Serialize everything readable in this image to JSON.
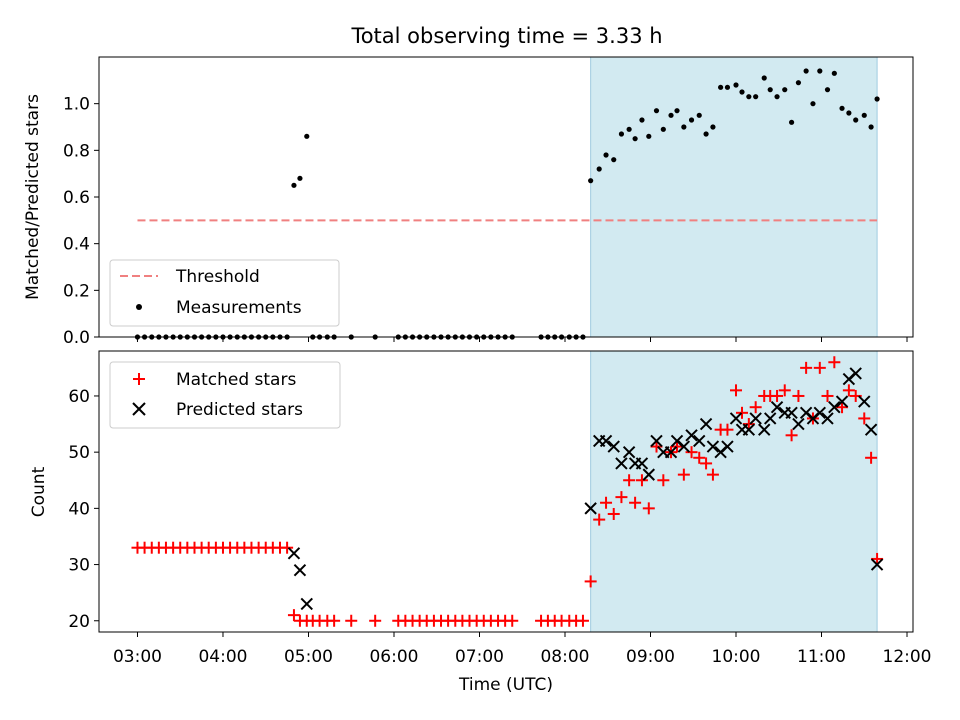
{
  "chart_data": {
    "type": "scatter",
    "title": "Total observing time = 3.33 h",
    "xlabel": "Time (UTC)",
    "x_unit": "hours UTC",
    "xlim": [
      2.55,
      12.07
    ],
    "x_ticks": [
      3,
      4,
      5,
      6,
      7,
      8,
      9,
      10,
      11,
      12
    ],
    "x_tick_labels": [
      "03:00",
      "04:00",
      "05:00",
      "06:00",
      "07:00",
      "08:00",
      "09:00",
      "10:00",
      "11:00",
      "12:00"
    ],
    "shaded_region": [
      8.3,
      11.65
    ],
    "shade_color": "#add8e6",
    "panels": [
      {
        "ylabel": "Matched/Predicted stars",
        "ylim": [
          0,
          1.2
        ],
        "y_ticks": [
          0,
          0.2,
          0.4,
          0.6,
          0.8,
          1.0
        ],
        "y_tick_labels": [
          "0.0",
          "0.2",
          "0.4",
          "0.6",
          "0.8",
          "1.0"
        ],
        "legend_position": "lower left",
        "threshold": {
          "name": "Threshold",
          "y": 0.5,
          "x_range": [
            3.0,
            11.65
          ],
          "color": "#f08080",
          "style": "dashed"
        },
        "series": [
          {
            "name": "Measurements",
            "marker": "dot",
            "color": "#000000",
            "points": [
              [
                3.0,
                0
              ],
              [
                3.083,
                0
              ],
              [
                3.167,
                0
              ],
              [
                3.25,
                0
              ],
              [
                3.333,
                0
              ],
              [
                3.417,
                0
              ],
              [
                3.5,
                0
              ],
              [
                3.583,
                0
              ],
              [
                3.667,
                0
              ],
              [
                3.75,
                0
              ],
              [
                3.833,
                0
              ],
              [
                3.917,
                0
              ],
              [
                4.0,
                0
              ],
              [
                4.083,
                0
              ],
              [
                4.167,
                0
              ],
              [
                4.25,
                0
              ],
              [
                4.333,
                0
              ],
              [
                4.417,
                0
              ],
              [
                4.5,
                0
              ],
              [
                4.583,
                0
              ],
              [
                4.667,
                0
              ],
              [
                4.75,
                0
              ],
              [
                4.83,
                0.65
              ],
              [
                4.9,
                0.68
              ],
              [
                4.98,
                0.86
              ],
              [
                5.05,
                0
              ],
              [
                5.13,
                0
              ],
              [
                5.22,
                0
              ],
              [
                5.3,
                0
              ],
              [
                5.5,
                0
              ],
              [
                5.78,
                0
              ],
              [
                6.05,
                0
              ],
              [
                6.133,
                0
              ],
              [
                6.217,
                0
              ],
              [
                6.3,
                0
              ],
              [
                6.383,
                0
              ],
              [
                6.467,
                0
              ],
              [
                6.55,
                0
              ],
              [
                6.633,
                0
              ],
              [
                6.717,
                0
              ],
              [
                6.8,
                0
              ],
              [
                6.883,
                0
              ],
              [
                6.967,
                0
              ],
              [
                7.05,
                0
              ],
              [
                7.133,
                0
              ],
              [
                7.217,
                0
              ],
              [
                7.3,
                0
              ],
              [
                7.383,
                0
              ],
              [
                7.72,
                0
              ],
              [
                7.8,
                0
              ],
              [
                7.88,
                0
              ],
              [
                7.96,
                0
              ],
              [
                8.05,
                0
              ],
              [
                8.13,
                0
              ],
              [
                8.21,
                0
              ],
              [
                8.3,
                0.67
              ],
              [
                8.4,
                0.72
              ],
              [
                8.48,
                0.78
              ],
              [
                8.57,
                0.76
              ],
              [
                8.66,
                0.87
              ],
              [
                8.75,
                0.89
              ],
              [
                8.82,
                0.85
              ],
              [
                8.9,
                0.93
              ],
              [
                8.98,
                0.86
              ],
              [
                9.07,
                0.97
              ],
              [
                9.15,
                0.89
              ],
              [
                9.24,
                0.95
              ],
              [
                9.31,
                0.97
              ],
              [
                9.39,
                0.9
              ],
              [
                9.48,
                0.93
              ],
              [
                9.57,
                0.95
              ],
              [
                9.65,
                0.87
              ],
              [
                9.73,
                0.9
              ],
              [
                9.82,
                1.07
              ],
              [
                9.9,
                1.07
              ],
              [
                10.0,
                1.08
              ],
              [
                10.07,
                1.05
              ],
              [
                10.15,
                1.03
              ],
              [
                10.23,
                1.03
              ],
              [
                10.33,
                1.11
              ],
              [
                10.4,
                1.06
              ],
              [
                10.48,
                1.03
              ],
              [
                10.57,
                1.06
              ],
              [
                10.65,
                0.92
              ],
              [
                10.73,
                1.09
              ],
              [
                10.82,
                1.14
              ],
              [
                10.9,
                1.0
              ],
              [
                10.98,
                1.14
              ],
              [
                11.07,
                1.06
              ],
              [
                11.15,
                1.13
              ],
              [
                11.24,
                0.98
              ],
              [
                11.32,
                0.96
              ],
              [
                11.4,
                0.93
              ],
              [
                11.5,
                0.95
              ],
              [
                11.58,
                0.9
              ],
              [
                11.65,
                1.02
              ]
            ]
          }
        ]
      },
      {
        "ylabel": "Count",
        "ylim": [
          18,
          68
        ],
        "y_ticks": [
          20,
          30,
          40,
          50,
          60
        ],
        "y_tick_labels": [
          "20",
          "30",
          "40",
          "50",
          "60"
        ],
        "legend_position": "upper left",
        "series": [
          {
            "name": "Matched stars",
            "marker": "plus",
            "color": "#ff0000",
            "points": [
              [
                3.0,
                33
              ],
              [
                3.083,
                33
              ],
              [
                3.167,
                33
              ],
              [
                3.25,
                33
              ],
              [
                3.333,
                33
              ],
              [
                3.417,
                33
              ],
              [
                3.5,
                33
              ],
              [
                3.583,
                33
              ],
              [
                3.667,
                33
              ],
              [
                3.75,
                33
              ],
              [
                3.833,
                33
              ],
              [
                3.917,
                33
              ],
              [
                4.0,
                33
              ],
              [
                4.083,
                33
              ],
              [
                4.167,
                33
              ],
              [
                4.25,
                33
              ],
              [
                4.333,
                33
              ],
              [
                4.417,
                33
              ],
              [
                4.5,
                33
              ],
              [
                4.583,
                33
              ],
              [
                4.667,
                33
              ],
              [
                4.75,
                33
              ],
              [
                4.83,
                21
              ],
              [
                4.9,
                20
              ],
              [
                4.98,
                20
              ],
              [
                5.05,
                20
              ],
              [
                5.13,
                20
              ],
              [
                5.22,
                20
              ],
              [
                5.3,
                20
              ],
              [
                5.5,
                20
              ],
              [
                5.78,
                20
              ],
              [
                6.05,
                20
              ],
              [
                6.133,
                20
              ],
              [
                6.217,
                20
              ],
              [
                6.3,
                20
              ],
              [
                6.383,
                20
              ],
              [
                6.467,
                20
              ],
              [
                6.55,
                20
              ],
              [
                6.633,
                20
              ],
              [
                6.717,
                20
              ],
              [
                6.8,
                20
              ],
              [
                6.883,
                20
              ],
              [
                6.967,
                20
              ],
              [
                7.05,
                20
              ],
              [
                7.133,
                20
              ],
              [
                7.217,
                20
              ],
              [
                7.3,
                20
              ],
              [
                7.383,
                20
              ],
              [
                7.72,
                20
              ],
              [
                7.8,
                20
              ],
              [
                7.88,
                20
              ],
              [
                7.96,
                20
              ],
              [
                8.05,
                20
              ],
              [
                8.13,
                20
              ],
              [
                8.21,
                20
              ],
              [
                8.3,
                27
              ],
              [
                8.4,
                38
              ],
              [
                8.48,
                41
              ],
              [
                8.57,
                39
              ],
              [
                8.66,
                42
              ],
              [
                8.75,
                45
              ],
              [
                8.82,
                41
              ],
              [
                8.9,
                45
              ],
              [
                8.98,
                40
              ],
              [
                9.07,
                51
              ],
              [
                9.15,
                45
              ],
              [
                9.24,
                50
              ],
              [
                9.31,
                51
              ],
              [
                9.39,
                46
              ],
              [
                9.48,
                50
              ],
              [
                9.57,
                49
              ],
              [
                9.65,
                48
              ],
              [
                9.73,
                46
              ],
              [
                9.82,
                54
              ],
              [
                9.9,
                54
              ],
              [
                10.0,
                61
              ],
              [
                10.07,
                57
              ],
              [
                10.15,
                55
              ],
              [
                10.23,
                58
              ],
              [
                10.33,
                60
              ],
              [
                10.4,
                60
              ],
              [
                10.48,
                60
              ],
              [
                10.57,
                61
              ],
              [
                10.65,
                53
              ],
              [
                10.73,
                60
              ],
              [
                10.82,
                65
              ],
              [
                10.9,
                56
              ],
              [
                10.98,
                65
              ],
              [
                11.07,
                60
              ],
              [
                11.15,
                66
              ],
              [
                11.24,
                58
              ],
              [
                11.32,
                61
              ],
              [
                11.4,
                60
              ],
              [
                11.5,
                56
              ],
              [
                11.58,
                49
              ],
              [
                11.65,
                31
              ]
            ]
          },
          {
            "name": "Predicted stars",
            "marker": "x",
            "color": "#000000",
            "points": [
              [
                4.83,
                32
              ],
              [
                4.9,
                29
              ],
              [
                4.98,
                23
              ],
              [
                8.3,
                40
              ],
              [
                8.4,
                52
              ],
              [
                8.48,
                52
              ],
              [
                8.57,
                51
              ],
              [
                8.66,
                48
              ],
              [
                8.75,
                50
              ],
              [
                8.82,
                48
              ],
              [
                8.9,
                48
              ],
              [
                8.98,
                46
              ],
              [
                9.07,
                52
              ],
              [
                9.15,
                50
              ],
              [
                9.24,
                50
              ],
              [
                9.31,
                52
              ],
              [
                9.39,
                51
              ],
              [
                9.48,
                53
              ],
              [
                9.57,
                52
              ],
              [
                9.65,
                55
              ],
              [
                9.73,
                51
              ],
              [
                9.82,
                50
              ],
              [
                9.9,
                51
              ],
              [
                10.0,
                56
              ],
              [
                10.07,
                54
              ],
              [
                10.15,
                54
              ],
              [
                10.23,
                56
              ],
              [
                10.33,
                54
              ],
              [
                10.4,
                56
              ],
              [
                10.48,
                58
              ],
              [
                10.57,
                57
              ],
              [
                10.65,
                57
              ],
              [
                10.73,
                55
              ],
              [
                10.82,
                57
              ],
              [
                10.9,
                56
              ],
              [
                10.98,
                57
              ],
              [
                11.07,
                56
              ],
              [
                11.15,
                58
              ],
              [
                11.24,
                59
              ],
              [
                11.32,
                63
              ],
              [
                11.4,
                64
              ],
              [
                11.5,
                59
              ],
              [
                11.58,
                54
              ],
              [
                11.65,
                30
              ]
            ]
          }
        ]
      }
    ]
  }
}
